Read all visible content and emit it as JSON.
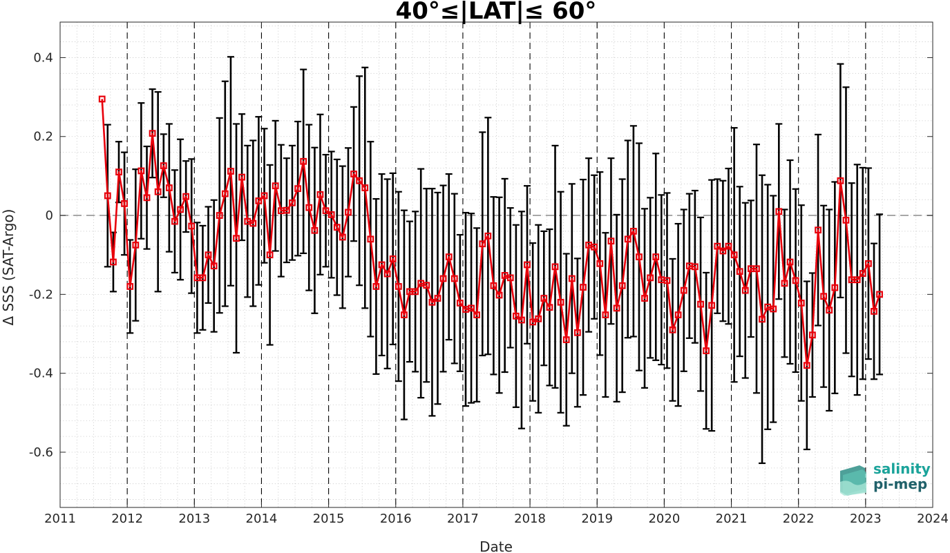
{
  "chart_data": {
    "type": "line",
    "title": "40°≤|LAT|≤ 60°",
    "xlabel": "Date",
    "ylabel": "Δ SSS (SAT-Argo)",
    "xlim": [
      2011,
      2024
    ],
    "ylim": [
      -0.74,
      0.49
    ],
    "x_ticks": [
      2011,
      2012,
      2013,
      2014,
      2015,
      2016,
      2017,
      2018,
      2019,
      2020,
      2021,
      2022,
      2023,
      2024
    ],
    "x_tick_labels": [
      "2011",
      "2012",
      "2013",
      "2014",
      "2015",
      "2016",
      "2017",
      "2018",
      "2019",
      "2020",
      "2021",
      "2022",
      "2023",
      "2024"
    ],
    "y_ticks": [
      -0.6,
      -0.4,
      -0.2,
      0,
      0.2,
      0.4
    ],
    "y_tick_labels": [
      "-0.6",
      "-0.4",
      "-0.2",
      "0",
      "0.2",
      "0.4"
    ],
    "grid": "minor dotted",
    "year_markers": "dashed vertical lines at each year",
    "reference_line": {
      "y": 0,
      "style": "dashed"
    },
    "series": [
      {
        "color": "#e8000b",
        "marker": "square",
        "x": [
          2011.625,
          2011.708,
          2011.792,
          2011.875,
          2011.958,
          2012.042,
          2012.125,
          2012.208,
          2012.292,
          2012.375,
          2012.458,
          2012.542,
          2012.625,
          2012.708,
          2012.792,
          2012.875,
          2012.958,
          2013.042,
          2013.125,
          2013.208,
          2013.292,
          2013.375,
          2013.458,
          2013.542,
          2013.625,
          2013.708,
          2013.792,
          2013.875,
          2013.958,
          2014.042,
          2014.125,
          2014.208,
          2014.292,
          2014.375,
          2014.458,
          2014.542,
          2014.625,
          2014.708,
          2014.792,
          2014.875,
          2014.958,
          2015.042,
          2015.125,
          2015.208,
          2015.292,
          2015.375,
          2015.458,
          2015.542,
          2015.625,
          2015.708,
          2015.792,
          2015.875,
          2015.958,
          2016.042,
          2016.125,
          2016.208,
          2016.292,
          2016.375,
          2016.458,
          2016.542,
          2016.625,
          2016.708,
          2016.792,
          2016.875,
          2016.958,
          2017.042,
          2017.125,
          2017.208,
          2017.292,
          2017.375,
          2017.458,
          2017.542,
          2017.625,
          2017.708,
          2017.792,
          2017.875,
          2017.958,
          2018.042,
          2018.125,
          2018.208,
          2018.292,
          2018.375,
          2018.458,
          2018.542,
          2018.625,
          2018.708,
          2018.792,
          2018.875,
          2018.958,
          2019.042,
          2019.125,
          2019.208,
          2019.292,
          2019.375,
          2019.458,
          2019.542,
          2019.625,
          2019.708,
          2019.792,
          2019.875,
          2019.958,
          2020.042,
          2020.125,
          2020.208,
          2020.292,
          2020.375,
          2020.458,
          2020.542,
          2020.625,
          2020.708,
          2020.792,
          2020.875,
          2020.958,
          2021.042,
          2021.125,
          2021.208,
          2021.292,
          2021.375,
          2021.458,
          2021.542,
          2021.625,
          2021.708,
          2021.792,
          2021.875,
          2021.958,
          2022.042,
          2022.125,
          2022.208,
          2022.292,
          2022.375,
          2022.458,
          2022.542,
          2022.625,
          2022.708,
          2022.792,
          2022.875,
          2022.958,
          2023.042,
          2023.125,
          2023.208
        ],
        "values": [
          0.295,
          0.05,
          -0.118,
          0.11,
          0.03,
          -0.18,
          -0.075,
          0.113,
          0.045,
          0.208,
          0.06,
          0.126,
          0.07,
          -0.015,
          0.015,
          0.048,
          -0.027,
          -0.158,
          -0.158,
          -0.1,
          -0.128,
          0.0,
          0.055,
          0.112,
          -0.058,
          0.097,
          -0.015,
          -0.02,
          0.037,
          0.05,
          -0.1,
          0.075,
          0.012,
          0.013,
          0.032,
          0.068,
          0.137,
          0.02,
          -0.038,
          0.053,
          0.012,
          0.002,
          -0.03,
          -0.055,
          0.008,
          0.105,
          0.088,
          0.07,
          -0.06,
          -0.18,
          -0.125,
          -0.148,
          -0.11,
          -0.18,
          -0.252,
          -0.193,
          -0.193,
          -0.172,
          -0.177,
          -0.22,
          -0.21,
          -0.16,
          -0.105,
          -0.16,
          -0.222,
          -0.238,
          -0.235,
          -0.252,
          -0.072,
          -0.052,
          -0.178,
          -0.202,
          -0.152,
          -0.158,
          -0.255,
          -0.265,
          -0.125,
          -0.27,
          -0.262,
          -0.21,
          -0.233,
          -0.13,
          -0.22,
          -0.315,
          -0.16,
          -0.297,
          -0.182,
          -0.075,
          -0.08,
          -0.122,
          -0.252,
          -0.065,
          -0.235,
          -0.178,
          -0.06,
          -0.04,
          -0.105,
          -0.21,
          -0.158,
          -0.105,
          -0.163,
          -0.165,
          -0.29,
          -0.252,
          -0.19,
          -0.128,
          -0.13,
          -0.225,
          -0.343,
          -0.228,
          -0.078,
          -0.09,
          -0.078,
          -0.1,
          -0.142,
          -0.19,
          -0.135,
          -0.135,
          -0.263,
          -0.232,
          -0.237,
          0.01,
          -0.172,
          -0.118,
          -0.165,
          -0.222,
          -0.38,
          -0.303,
          -0.037,
          -0.205,
          -0.24,
          -0.183,
          0.088,
          -0.012,
          -0.163,
          -0.163,
          -0.147,
          -0.122,
          -0.243,
          -0.2
        ],
        "err": [
          0.0,
          0.18,
          0.075,
          0.077,
          0.13,
          0.118,
          0.192,
          0.172,
          0.13,
          0.112,
          0.253,
          0.08,
          0.162,
          0.13,
          0.178,
          0.09,
          0.17,
          0.14,
          0.132,
          0.122,
          0.167,
          0.247,
          0.285,
          0.29,
          0.29,
          0.16,
          0.192,
          0.21,
          0.213,
          0.17,
          0.228,
          0.165,
          0.167,
          0.132,
          0.145,
          0.17,
          0.233,
          0.21,
          0.21,
          0.203,
          0.142,
          0.16,
          0.172,
          0.18,
          0.163,
          0.17,
          0.265,
          0.305,
          0.247,
          0.222,
          0.23,
          0.24,
          0.217,
          0.24,
          0.265,
          0.178,
          0.203,
          0.29,
          0.245,
          0.288,
          0.268,
          0.236,
          0.21,
          0.215,
          0.173,
          0.245,
          0.24,
          0.22,
          0.283,
          0.3,
          0.225,
          0.248,
          0.245,
          0.177,
          0.231,
          0.275,
          0.2,
          0.2,
          0.238,
          0.17,
          0.198,
          0.307,
          0.28,
          0.218,
          0.24,
          0.188,
          0.273,
          0.22,
          0.182,
          0.232,
          0.208,
          0.21,
          0.237,
          0.27,
          0.25,
          0.267,
          0.288,
          0.227,
          0.203,
          0.262,
          0.215,
          0.222,
          0.18,
          0.231,
          0.205,
          0.183,
          0.193,
          0.22,
          0.198,
          0.318,
          0.17,
          0.178,
          0.197,
          0.322,
          0.215,
          0.222,
          0.173,
          0.315,
          0.365,
          0.31,
          0.287,
          0.222,
          0.187,
          0.258,
          0.232,
          0.248,
          0.213,
          0.157,
          0.242,
          0.23,
          0.255,
          0.268,
          0.296,
          0.337,
          0.245,
          0.292,
          0.268,
          0.242,
          0.172,
          0.203
        ]
      }
    ]
  },
  "logo": {
    "line1": "salinity",
    "line2": "pi-mep",
    "color1": "#1aa39a",
    "color2": "#20616a"
  }
}
